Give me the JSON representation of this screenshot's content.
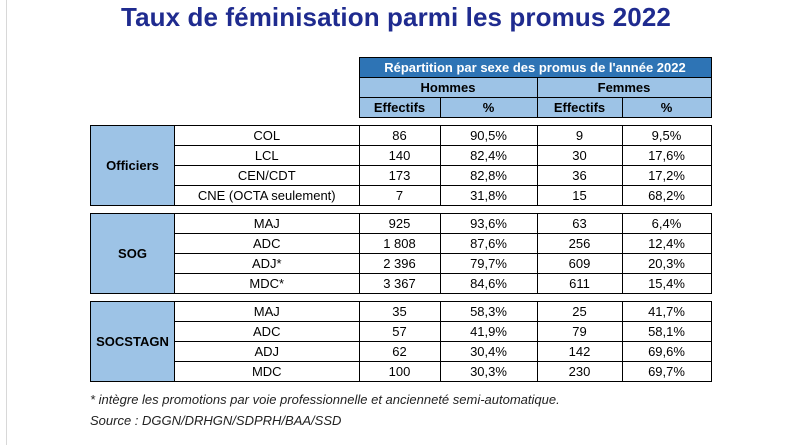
{
  "title": "Taux de féminisation parmi les promus 2022",
  "table": {
    "main_header": "Répartition par sexe des promus de l'année 2022",
    "group_headers": [
      "Hommes",
      "Femmes"
    ],
    "sub_headers": [
      "Effectifs",
      "%",
      "Effectifs",
      "%"
    ],
    "groups": [
      {
        "name": "Officiers",
        "rows": [
          {
            "label": "COL",
            "h_eff": "86",
            "h_pct": "90,5%",
            "f_eff": "9",
            "f_pct": "9,5%"
          },
          {
            "label": "LCL",
            "h_eff": "140",
            "h_pct": "82,4%",
            "f_eff": "30",
            "f_pct": "17,6%"
          },
          {
            "label": "CEN/CDT",
            "h_eff": "173",
            "h_pct": "82,8%",
            "f_eff": "36",
            "f_pct": "17,2%"
          },
          {
            "label": "CNE (OCTA seulement)",
            "h_eff": "7",
            "h_pct": "31,8%",
            "f_eff": "15",
            "f_pct": "68,2%"
          }
        ]
      },
      {
        "name": "SOG",
        "rows": [
          {
            "label": "MAJ",
            "h_eff": "925",
            "h_pct": "93,6%",
            "f_eff": "63",
            "f_pct": "6,4%"
          },
          {
            "label": "ADC",
            "h_eff": "1 808",
            "h_pct": "87,6%",
            "f_eff": "256",
            "f_pct": "12,4%"
          },
          {
            "label": "ADJ*",
            "h_eff": "2 396",
            "h_pct": "79,7%",
            "f_eff": "609",
            "f_pct": "20,3%"
          },
          {
            "label": "MDC*",
            "h_eff": "3 367",
            "h_pct": "84,6%",
            "f_eff": "611",
            "f_pct": "15,4%"
          }
        ]
      },
      {
        "name": "SOCSTAGN",
        "rows": [
          {
            "label": "MAJ",
            "h_eff": "35",
            "h_pct": "58,3%",
            "f_eff": "25",
            "f_pct": "41,7%"
          },
          {
            "label": "ADC",
            "h_eff": "57",
            "h_pct": "41,9%",
            "f_eff": "79",
            "f_pct": "58,1%"
          },
          {
            "label": "ADJ",
            "h_eff": "62",
            "h_pct": "30,4%",
            "f_eff": "142",
            "f_pct": "69,6%"
          },
          {
            "label": "MDC",
            "h_eff": "100",
            "h_pct": "30,3%",
            "f_eff": "230",
            "f_pct": "69,7%"
          }
        ]
      }
    ]
  },
  "footnote": "* intègre les promotions par voie professionnelle et ancienneté semi-automatique.",
  "source": "Source : DGGN/DRHGN/SDPRH/BAA/SSD",
  "colors": {
    "title": "#1f2b8f",
    "header_dark": "#2e74b5",
    "header_light": "#9dc3e6"
  }
}
